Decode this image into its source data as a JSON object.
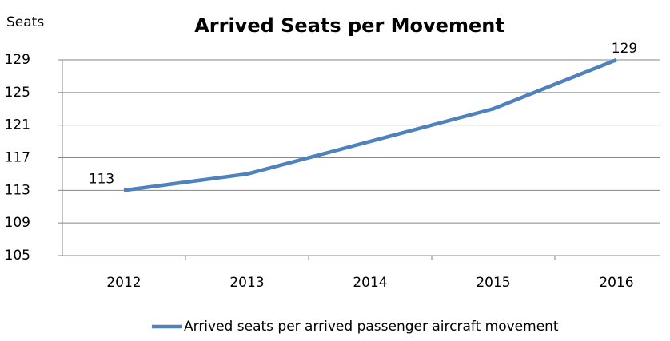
{
  "chart_data": {
    "type": "line",
    "title": "Arrived Seats per Movement",
    "y_label": "Seats",
    "categories": [
      "2012",
      "2013",
      "2014",
      "2015",
      "2016"
    ],
    "series": [
      {
        "name": "Arrived seats per arrived passenger aircraft movement",
        "color": "#4f81bd",
        "values": [
          113,
          115,
          119,
          123,
          129
        ],
        "value_labels": [
          "113",
          null,
          null,
          null,
          "129"
        ]
      }
    ],
    "ylim": [
      105,
      129
    ],
    "yticks": [
      105,
      109,
      113,
      117,
      121,
      125,
      129
    ],
    "grid": true,
    "legend": "bottom"
  }
}
